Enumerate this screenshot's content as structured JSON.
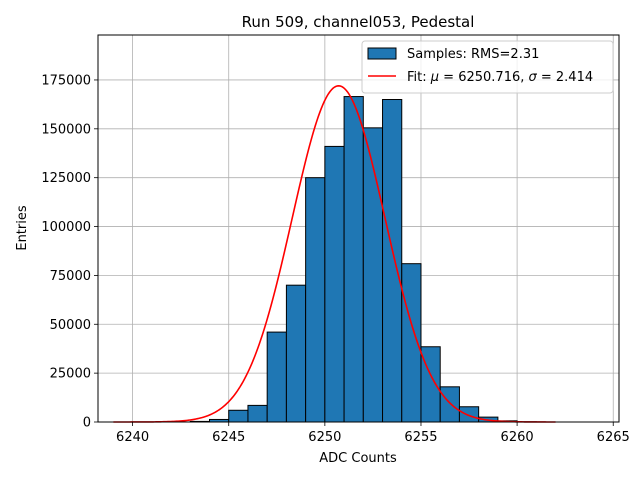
{
  "chart_data": {
    "type": "bar",
    "title": "Run 509, channel053, Pedestal",
    "xlabel": "ADC Counts",
    "ylabel": "Entries",
    "xlim": [
      6238.2,
      6265.3
    ],
    "ylim": [
      0,
      198000
    ],
    "grid": true,
    "legend_position": "top-right",
    "x_ticks": [
      6240,
      6245,
      6250,
      6255,
      6260,
      6265
    ],
    "x_tick_labels": [
      "6240",
      "6245",
      "6250",
      "6255",
      "6260",
      "6265"
    ],
    "y_ticks": [
      0,
      25000,
      50000,
      75000,
      100000,
      125000,
      150000,
      175000
    ],
    "y_tick_labels": [
      "0",
      "25000",
      "50000",
      "75000",
      "100000",
      "125000",
      "150000",
      "175000"
    ],
    "histogram": {
      "name": "Samples: RMS=2.31",
      "color": "#1f77b4",
      "edge_color": "#000000",
      "bin_edges": [
        6239,
        6240,
        6241,
        6242,
        6243,
        6244,
        6245,
        6246,
        6247,
        6248,
        6249,
        6250,
        6251,
        6252,
        6253,
        6254,
        6255,
        6256,
        6257,
        6258,
        6259,
        6260,
        6261,
        6262
      ],
      "counts": [
        0,
        0,
        0,
        0,
        300,
        1300,
        6000,
        8500,
        46000,
        70000,
        125000,
        141000,
        166500,
        150500,
        165000,
        81000,
        38500,
        18000,
        7800,
        2500,
        600,
        100,
        0
      ]
    },
    "fit": {
      "name": "Fit: μ = 6250.716, σ = 2.414",
      "label_prefix": "Fit: ",
      "mu_symbol": "μ",
      "mu_text": " = 6250.716, ",
      "sigma_symbol": "σ",
      "sigma_text": " = 2.414",
      "color": "#ff0000",
      "mu": 6250.716,
      "sigma": 2.414,
      "amplitude": 172000,
      "x_range": [
        6239,
        6262
      ]
    }
  }
}
